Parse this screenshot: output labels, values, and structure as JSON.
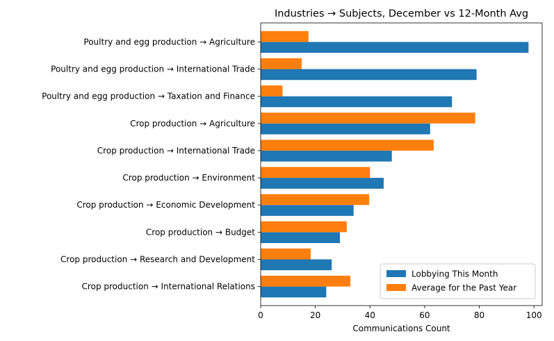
{
  "chart_data": {
    "type": "bar",
    "orientation": "horizontal",
    "title": "Industries → Subjects, December vs 12-Month Avg",
    "xlabel": "Communications Count",
    "ylabel": "",
    "xlim": [
      0,
      103
    ],
    "xticks": [
      0,
      20,
      40,
      60,
      80,
      100
    ],
    "grid": false,
    "legend_position": "lower-right",
    "categories": [
      "Poultry and egg production → Agriculture",
      "Poultry and egg production → International Trade",
      "Poultry and egg production → Taxation and Finance",
      "Crop production → Agriculture",
      "Crop production → International Trade",
      "Crop production → Environment",
      "Crop production → Economic Development",
      "Crop production → Budget",
      "Crop production → Research and Development",
      "Crop production → International Relations"
    ],
    "series": [
      {
        "name": "Lobbying This Month",
        "color": "#1f77b4",
        "values": [
          98,
          79,
          70,
          62,
          48,
          45,
          34,
          29,
          26,
          24
        ]
      },
      {
        "name": "Average for the Past Year",
        "color": "#ff7f0e",
        "values": [
          17.5,
          15,
          8,
          78.5,
          63.3,
          40,
          39.7,
          31.5,
          18.3,
          32.8
        ]
      }
    ]
  }
}
